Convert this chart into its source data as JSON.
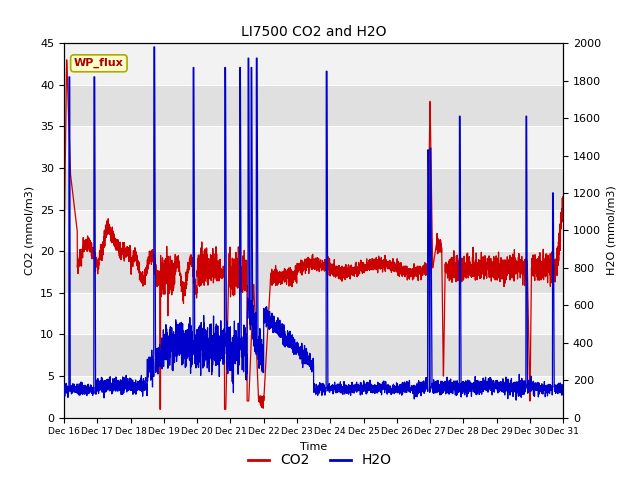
{
  "title": "LI7500 CO2 and H2O",
  "xlabel": "Time",
  "ylabel_left": "CO2 (mmol/m3)",
  "ylabel_right": "H2O (mmol/m3)",
  "xlim_days": [
    16,
    31
  ],
  "ylim_left": [
    0,
    45
  ],
  "ylim_right": [
    0,
    2000
  ],
  "co2_color": "#cc0000",
  "h2o_color": "#0000cc",
  "background_color": "#ffffff",
  "plot_bg_color": "#e8e8e8",
  "annotation_text": "WP_flux",
  "annotation_bg": "#ffffcc",
  "annotation_border": "#aaaa00",
  "legend_co2": "CO2",
  "legend_h2o": "H2O",
  "yticks_left": [
    0,
    5,
    10,
    15,
    20,
    25,
    30,
    35,
    40,
    45
  ],
  "yticks_right": [
    0,
    200,
    400,
    600,
    800,
    1000,
    1200,
    1400,
    1600,
    1800,
    2000
  ],
  "tick_labels": [
    "Dec 16",
    "Dec 17",
    "Dec 18",
    "Dec 19",
    "Dec 20",
    "Dec 21",
    "Dec 22",
    "Dec 23",
    "Dec 24",
    "Dec 25",
    "Dec 26",
    "Dec 27",
    "Dec 28",
    "Dec 29",
    "Dec 30",
    "Dec 31"
  ]
}
